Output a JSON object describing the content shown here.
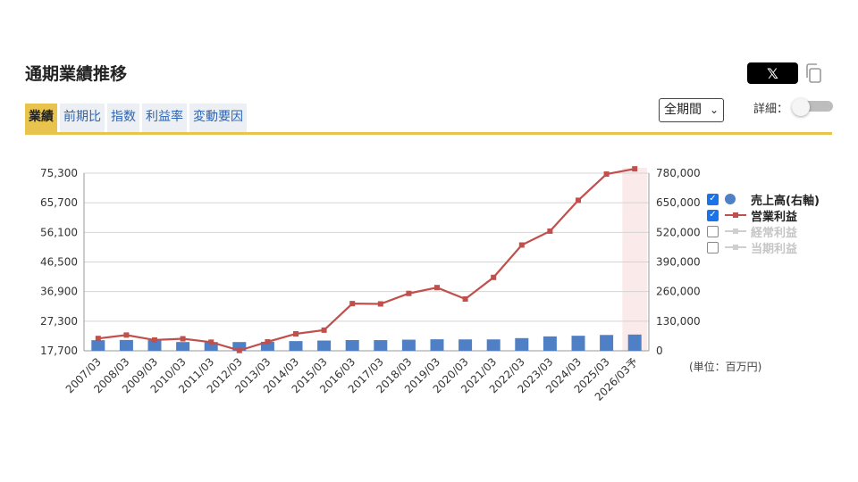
{
  "page_title": "通期業績推移",
  "share": {
    "x_label": "𝕏",
    "copy_icon": "copy-icon"
  },
  "tabs": [
    {
      "label": "業績",
      "active": true
    },
    {
      "label": "前期比",
      "active": false
    },
    {
      "label": "指数",
      "active": false
    },
    {
      "label": "利益率",
      "active": false
    },
    {
      "label": "変動要因",
      "active": false
    }
  ],
  "period_select": {
    "value": "全期間"
  },
  "detail": {
    "label": "詳細：",
    "enabled": false
  },
  "unit_note": "(単位：百万円)",
  "colors": {
    "bar": "#4f7fc4",
    "line": "#c0504d",
    "accent": "#e8c34e",
    "forecast_bg": "#fbeaea"
  },
  "legend": [
    {
      "label": "売上高(右軸)",
      "checked": true,
      "symbol": "circle"
    },
    {
      "label": "営業利益",
      "checked": true,
      "symbol": "line-marker"
    },
    {
      "label": "経常利益",
      "checked": false,
      "symbol": "line-marker"
    },
    {
      "label": "当期利益",
      "checked": false,
      "symbol": "line-marker"
    }
  ],
  "chart_data": {
    "type": "bar",
    "categories": [
      "2007/03",
      "2008/03",
      "2009/03",
      "2010/03",
      "2011/03",
      "2012/03",
      "2013/03",
      "2014/03",
      "2015/03",
      "2016/03",
      "2017/03",
      "2018/03",
      "2019/03",
      "2020/03",
      "2021/03",
      "2022/03",
      "2023/03",
      "2024/03",
      "2025/03",
      "2026/03予"
    ],
    "forecast_index": 19,
    "left_axis": {
      "ticks": [
        "75,300",
        "65,700",
        "56,100",
        "46,500",
        "36,900",
        "27,300",
        "17,700"
      ],
      "min": 17700,
      "max": 75300
    },
    "right_axis": {
      "ticks": [
        "780,000",
        "650,000",
        "520,000",
        "390,000",
        "260,000",
        "130,000",
        "0"
      ],
      "min": 0,
      "max": 780000
    },
    "series": [
      {
        "name": "売上高(右軸)",
        "type": "bar",
        "axis": "right",
        "values": [
          46500,
          47500,
          47200,
          38500,
          38400,
          38400,
          39600,
          42600,
          45000,
          47000,
          46800,
          48800,
          50500,
          50000,
          50000,
          55600,
          63200,
          66000,
          69500,
          71300
        ]
      },
      {
        "name": "営業利益",
        "type": "line",
        "axis": "left",
        "values": [
          21700,
          22800,
          21200,
          21600,
          20500,
          17800,
          20600,
          23200,
          24400,
          33000,
          32900,
          36300,
          38200,
          34500,
          41500,
          52000,
          56500,
          66500,
          75000,
          76700
        ]
      }
    ],
    "grid": true
  }
}
